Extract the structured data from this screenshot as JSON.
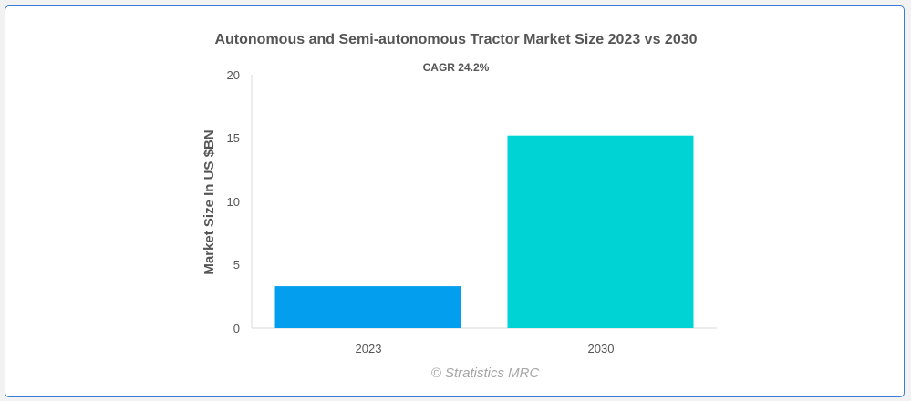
{
  "chart_data": {
    "type": "bar",
    "title": "Autonomous and Semi-autonomous Tractor Market Size 2023 vs 2030",
    "subtitle": "CAGR 24.2%",
    "ylabel": "Market Size In US $BN",
    "xlabel": "",
    "categories": [
      "2023",
      "2030"
    ],
    "values": [
      3.3,
      15.2
    ],
    "colors": [
      "#039fee",
      "#00d3d4"
    ],
    "ylim": [
      0,
      20
    ],
    "yticks": [
      "0",
      "5",
      "10",
      "15",
      "20"
    ],
    "grid": false,
    "legend": "none"
  },
  "credit": "© Stratistics MRC",
  "frame_border_color": "#3a7bd5"
}
